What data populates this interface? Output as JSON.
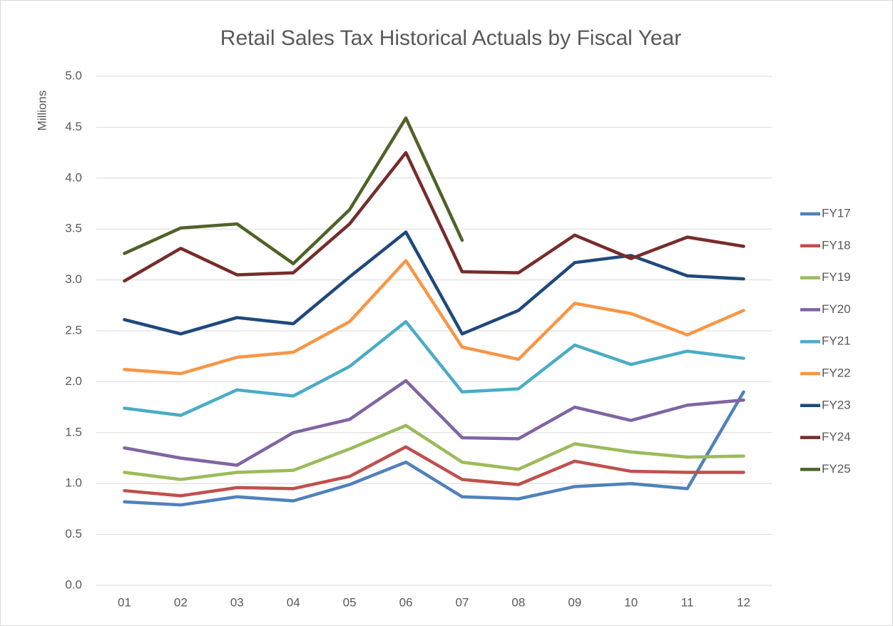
{
  "chart_data": {
    "type": "line",
    "title": "Retail Sales Tax Historical Actuals by Fiscal Year",
    "y_label": "Millions",
    "categories": [
      "01",
      "02",
      "03",
      "04",
      "05",
      "06",
      "07",
      "08",
      "09",
      "10",
      "11",
      "12"
    ],
    "ylim": [
      0,
      5
    ],
    "yticks": [
      {
        "value": 0,
        "label": "0.0"
      },
      0.5,
      {
        "value": 1,
        "label": "1.0"
      },
      1.5,
      {
        "value": 2,
        "label": "2.0"
      },
      2.5,
      {
        "value": 3,
        "label": "3.0"
      },
      3.5,
      {
        "value": 4,
        "label": "4.0"
      },
      4.5,
      {
        "value": 5,
        "label": "5.0"
      }
    ],
    "grid": true,
    "legend": "right",
    "series": [
      {
        "name": "FY17",
        "color": "#4f81bd",
        "values": [
          0.82,
          0.79,
          0.87,
          0.83,
          0.99,
          1.21,
          0.87,
          0.85,
          0.97,
          1.0,
          0.95,
          1.9
        ]
      },
      {
        "name": "FY18",
        "color": "#c0504d",
        "values": [
          0.93,
          0.88,
          0.96,
          0.95,
          1.07,
          1.36,
          1.04,
          0.99,
          1.22,
          1.12,
          1.11,
          1.11
        ]
      },
      {
        "name": "FY19",
        "color": "#9bbb59",
        "values": [
          1.11,
          1.04,
          1.11,
          1.13,
          1.34,
          1.57,
          1.21,
          1.14,
          1.39,
          1.31,
          1.26,
          1.27
        ]
      },
      {
        "name": "FY20",
        "color": "#8064a2",
        "values": [
          1.35,
          1.25,
          1.18,
          1.5,
          1.63,
          2.01,
          1.45,
          1.44,
          1.75,
          1.62,
          1.77,
          1.82
        ]
      },
      {
        "name": "FY21",
        "color": "#4bacc6",
        "values": [
          1.74,
          1.67,
          1.92,
          1.86,
          2.15,
          2.59,
          1.9,
          1.93,
          2.36,
          2.17,
          2.3,
          2.23
        ]
      },
      {
        "name": "FY22",
        "color": "#f79646",
        "values": [
          2.12,
          2.08,
          2.24,
          2.29,
          2.59,
          3.19,
          2.34,
          2.22,
          2.77,
          2.67,
          2.46,
          2.7
        ]
      },
      {
        "name": "FY23",
        "color": "#1f497d",
        "values": [
          2.61,
          2.47,
          2.63,
          2.57,
          3.03,
          3.47,
          2.47,
          2.7,
          3.17,
          3.24,
          3.04,
          3.01
        ]
      },
      {
        "name": "FY24",
        "color": "#772c2a",
        "values": [
          2.99,
          3.31,
          3.05,
          3.07,
          3.55,
          4.25,
          3.08,
          3.07,
          3.44,
          3.21,
          3.42,
          3.33
        ]
      },
      {
        "name": "FY25",
        "color": "#4f6228",
        "values": [
          3.26,
          3.51,
          3.55,
          3.16,
          3.69,
          4.59,
          3.39,
          null,
          null,
          null,
          null,
          null
        ]
      }
    ]
  }
}
